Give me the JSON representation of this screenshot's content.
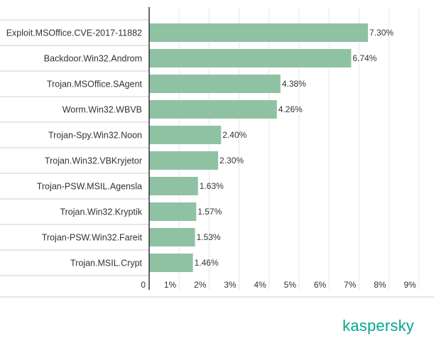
{
  "brand": {
    "name": "kaspersky",
    "color": "#00a88e"
  },
  "chart_data": {
    "type": "bar",
    "orientation": "horizontal",
    "categories": [
      "Exploit.MSOffice.CVE-2017-11882",
      "Backdoor.Win32.Androm",
      "Trojan.MSOffice.SAgent",
      "Worm.Win32.WBVB",
      "Trojan-Spy.Win32.Noon",
      "Trojan.Win32.VBKryjetor",
      "Trojan-PSW.MSIL.Agensla",
      "Trojan.Win32.Kryptik",
      "Trojan-PSW.Win32.Fareit",
      "Trojan.MSIL.Crypt"
    ],
    "values": [
      7.3,
      6.74,
      4.38,
      4.26,
      2.4,
      2.3,
      1.63,
      1.57,
      1.53,
      1.46
    ],
    "value_labels": [
      "7.30%",
      "6.74%",
      "4.38%",
      "4.26%",
      "2.40%",
      "2.30%",
      "1.63%",
      "1.57%",
      "1.53%",
      "1.46%"
    ],
    "xlim": [
      0,
      9
    ],
    "x_ticks": [
      0,
      1,
      2,
      3,
      4,
      5,
      6,
      7,
      8,
      9
    ],
    "x_tick_labels": [
      "0",
      "1%",
      "2%",
      "3%",
      "4%",
      "5%",
      "6%",
      "7%",
      "8%",
      "9%"
    ],
    "title": "",
    "xlabel": "",
    "ylabel": "",
    "grid": true,
    "legend": "none",
    "colors": {
      "bar": "#8fc2a3",
      "grid": "#e6e6e6",
      "axis": "#333333",
      "separator": "#cfcfcf",
      "text": "#333333"
    }
  }
}
